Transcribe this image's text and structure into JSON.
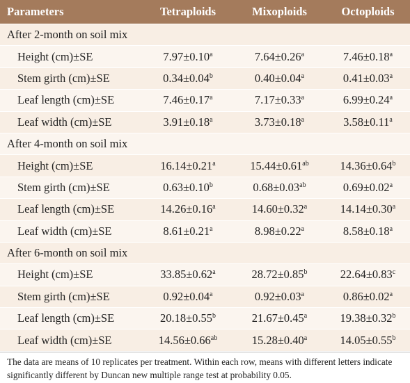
{
  "table": {
    "header": [
      "Parameters",
      "Tetraploids",
      "Mixoploids",
      "Octoploids"
    ],
    "sections": [
      {
        "title": "After 2-month on soil mix",
        "rows": [
          {
            "label": "Height (cm)±SE",
            "cells": [
              {
                "text": "7.97±0.10",
                "sup": "a"
              },
              {
                "text": "7.64±0.26",
                "sup": "a"
              },
              {
                "text": "7.46±0.18",
                "sup": "a"
              }
            ]
          },
          {
            "label": "Stem girth (cm)±SE",
            "cells": [
              {
                "text": "0.34±0.04",
                "sup": "b"
              },
              {
                "text": "0.40±0.04",
                "sup": "a"
              },
              {
                "text": "0.41±0.03",
                "sup": "a"
              }
            ]
          },
          {
            "label": "Leaf length (cm)±SE",
            "cells": [
              {
                "text": "7.46±0.17",
                "sup": "a"
              },
              {
                "text": "7.17±0.33",
                "sup": "a"
              },
              {
                "text": "6.99±0.24",
                "sup": "a"
              }
            ]
          },
          {
            "label": "Leaf width (cm)±SE",
            "cells": [
              {
                "text": "3.91±0.18",
                "sup": "a"
              },
              {
                "text": "3.73±0.18",
                "sup": "a"
              },
              {
                "text": "3.58±0.11",
                "sup": "a"
              }
            ]
          }
        ]
      },
      {
        "title": "After 4-month on soil mix",
        "rows": [
          {
            "label": "Height (cm)±SE",
            "cells": [
              {
                "text": "16.14±0.21",
                "sup": "a"
              },
              {
                "text": "15.44±0.61",
                "sup": "ab"
              },
              {
                "text": "14.36±0.64",
                "sup": "b"
              }
            ]
          },
          {
            "label": "Stem girth (cm)±SE",
            "cells": [
              {
                "text": "0.63±0.10",
                "sup": "b"
              },
              {
                "text": "0.68±0.03",
                "sup": "ab"
              },
              {
                "text": "0.69±0.02",
                "sup": "a"
              }
            ]
          },
          {
            "label": "Leaf length (cm)±SE",
            "cells": [
              {
                "text": "14.26±0.16",
                "sup": "a"
              },
              {
                "text": "14.60±0.32",
                "sup": "a"
              },
              {
                "text": "14.14±0.30",
                "sup": "a"
              }
            ]
          },
          {
            "label": "Leaf width (cm)±SE",
            "cells": [
              {
                "text": "8.61±0.21",
                "sup": "a"
              },
              {
                "text": "8.98±0.22",
                "sup": "a"
              },
              {
                "text": "8.58±0.18",
                "sup": "a"
              }
            ]
          }
        ]
      },
      {
        "title": "After 6-month on soil mix",
        "rows": [
          {
            "label": "Height (cm)±SE",
            "cells": [
              {
                "text": "33.85±0.62",
                "sup": "a"
              },
              {
                "text": "28.72±0.85",
                "sup": "b"
              },
              {
                "text": "22.64±0.83",
                "sup": "c"
              }
            ]
          },
          {
            "label": "Stem girth (cm)±SE",
            "cells": [
              {
                "text": "0.92±0.04",
                "sup": "a"
              },
              {
                "text": "0.92±0.03",
                "sup": "a"
              },
              {
                "text": "0.86±0.02",
                "sup": "a"
              }
            ]
          },
          {
            "label": "Leaf length (cm)±SE",
            "cells": [
              {
                "text": "20.18±0.55",
                "sup": "b"
              },
              {
                "text": "21.67±0.45",
                "sup": "a"
              },
              {
                "text": "19.38±0.32",
                "sup": "b"
              }
            ]
          },
          {
            "label": "Leaf width (cm)±SE",
            "cells": [
              {
                "text": "14.56±0.66",
                "sup": "ab"
              },
              {
                "text": "15.28±0.40",
                "sup": "a"
              },
              {
                "text": "14.05±0.55",
                "sup": "b"
              }
            ]
          }
        ]
      }
    ],
    "note": "The data are means of 10 replicates per treatment. Within each row, means with different letters indicate significantly different by Duncan new multiple range test at probability 0.05."
  }
}
